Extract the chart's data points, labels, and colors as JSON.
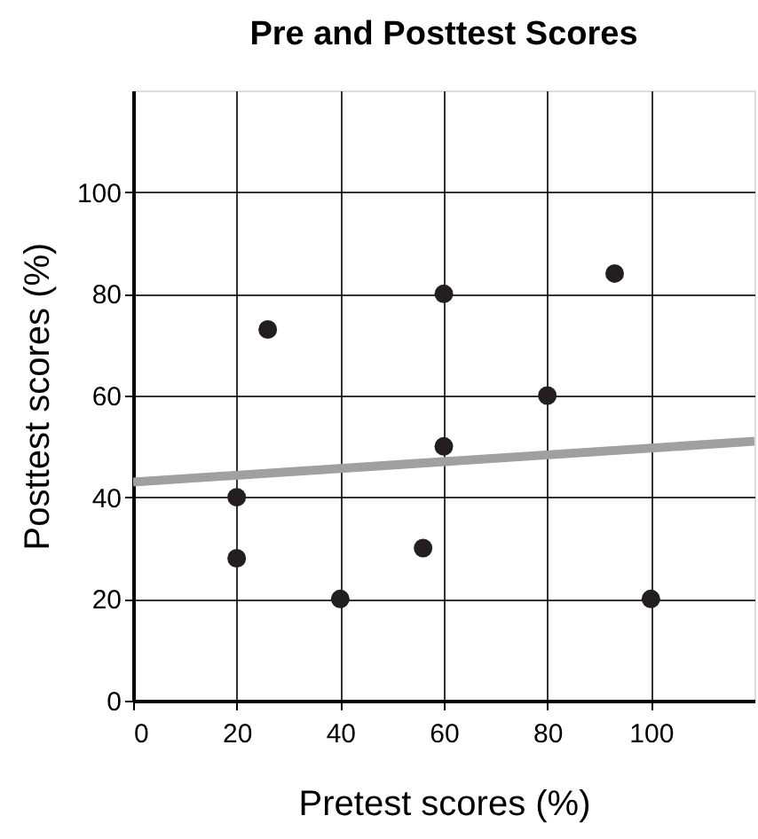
{
  "chart_data": {
    "type": "scatter",
    "title": "Pre and Posttest Scores",
    "xlabel": "Pretest scores (%)",
    "ylabel": "Posttest scores (%)",
    "x": [
      20,
      20,
      26,
      40,
      56,
      60,
      60,
      80,
      93,
      100
    ],
    "series": [
      {
        "color": "#231f20",
        "marker": "circle",
        "values": [
          40,
          28,
          73,
          20,
          30,
          80,
          50,
          60,
          84,
          20
        ]
      },
      {
        "type": "line",
        "marker": "none",
        "color": "#a0a0a0",
        "x": [
          0,
          120
        ],
        "values": [
          43,
          51
        ]
      }
    ],
    "xlim": [
      0,
      120
    ],
    "ylim": [
      0,
      120
    ],
    "xticks": [
      0,
      20,
      40,
      60,
      80,
      100
    ],
    "yticks": [
      0,
      20,
      40,
      60,
      80,
      100
    ],
    "grid": true
  }
}
